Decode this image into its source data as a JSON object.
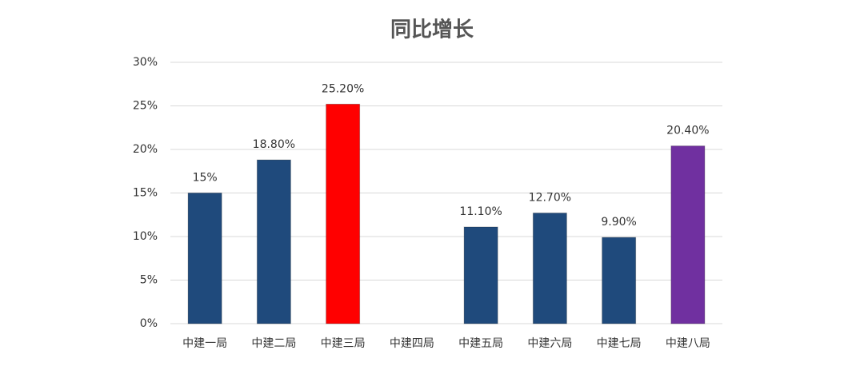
{
  "chart_data": {
    "type": "bar",
    "title": "同比增长",
    "categories": [
      "中建一局",
      "中建二局",
      "中建三局",
      "中建四局",
      "中建五局",
      "中建六局",
      "中建七局",
      "中建八局"
    ],
    "values": [
      15,
      18.8,
      25.2,
      null,
      11.1,
      12.7,
      9.9,
      20.4
    ],
    "value_labels": [
      "15%",
      "18.80%",
      "25.20%",
      null,
      "11.10%",
      "12.70%",
      "9.90%",
      "20.40%"
    ],
    "colors": [
      "#1f4a7c",
      "#1f4a7c",
      "#ff0000",
      "#1f4a7c",
      "#1f4a7c",
      "#1f4a7c",
      "#1f4a7c",
      "#7030a0"
    ],
    "ylim": [
      0,
      30
    ],
    "yticks": [
      {
        "value": 0,
        "label": "0%"
      },
      {
        "value": 5,
        "label": "5%"
      },
      {
        "value": 10,
        "label": "10%"
      },
      {
        "value": 15,
        "label": "15%"
      },
      {
        "value": 20,
        "label": "20%"
      },
      {
        "value": 25,
        "label": "25%"
      },
      {
        "value": 30,
        "label": "30%"
      }
    ],
    "grid": true
  }
}
